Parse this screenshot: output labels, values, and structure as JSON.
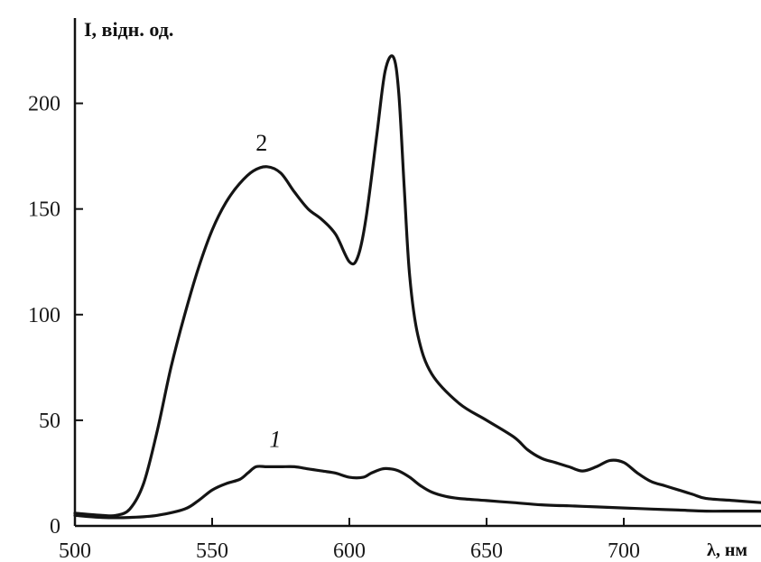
{
  "chart_data": {
    "type": "line",
    "ylabel": "I, відн. од.",
    "xlabel": "λ, нм",
    "xlim": [
      500,
      750
    ],
    "ylim": [
      0,
      225
    ],
    "x_ticks": [
      "500",
      "550",
      "600",
      "650",
      "700"
    ],
    "y_ticks": [
      "0",
      "50",
      "100",
      "150",
      "200"
    ],
    "grid": false,
    "series": [
      {
        "name": "1",
        "x": [
          500,
          510,
          520,
          530,
          540,
          545,
          550,
          555,
          560,
          563,
          566,
          570,
          575,
          580,
          585,
          590,
          595,
          600,
          605,
          608,
          612,
          615,
          618,
          622,
          626,
          630,
          635,
          640,
          650,
          660,
          670,
          680,
          690,
          700,
          710,
          720,
          730,
          740,
          750
        ],
        "y": [
          5,
          4,
          4,
          5,
          8,
          12,
          17,
          20,
          22,
          25,
          28,
          28,
          28,
          28,
          27,
          26,
          25,
          23,
          23,
          25,
          27,
          27,
          26,
          23,
          19,
          16,
          14,
          13,
          12,
          11,
          10,
          9.5,
          9,
          8.5,
          8,
          7.5,
          7,
          7,
          7
        ]
      },
      {
        "name": "2",
        "x": [
          500,
          510,
          515,
          520,
          525,
          530,
          535,
          540,
          545,
          550,
          555,
          560,
          565,
          570,
          575,
          580,
          585,
          590,
          595,
          600,
          603,
          606,
          610,
          613,
          616,
          618,
          620,
          622,
          625,
          630,
          640,
          650,
          660,
          665,
          670,
          675,
          680,
          685,
          690,
          695,
          700,
          705,
          710,
          715,
          720,
          725,
          730,
          740,
          750
        ],
        "y": [
          6,
          5,
          5,
          8,
          20,
          45,
          75,
          100,
          122,
          140,
          153,
          162,
          168,
          170,
          167,
          158,
          150,
          145,
          138,
          125,
          127,
          145,
          185,
          215,
          222,
          205,
          160,
          118,
          90,
          72,
          58,
          50,
          42,
          36,
          32,
          30,
          28,
          26,
          28,
          31,
          30,
          25,
          21,
          19,
          17,
          15,
          13,
          12,
          11
        ]
      }
    ]
  }
}
